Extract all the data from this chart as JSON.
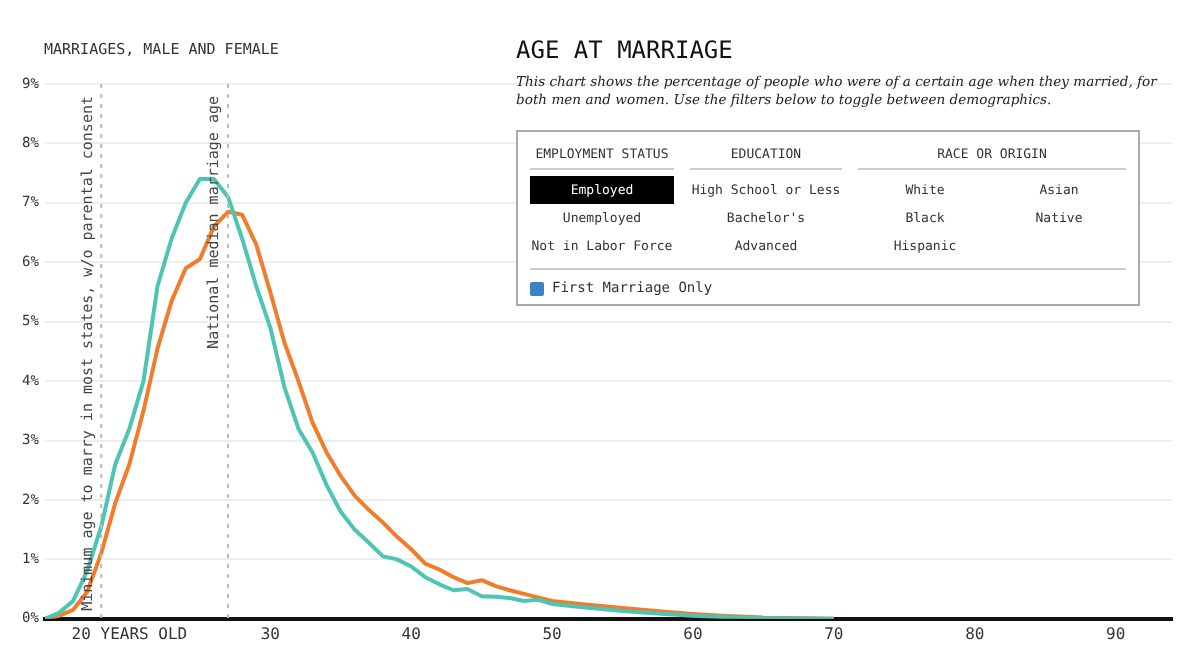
{
  "chart_data": {
    "type": "line",
    "title": "AGE AT MARRIAGE",
    "subtitle": "This chart shows the percentage of people who were of a certain age when they married, for both men and women. Use the filters below to toggle between demographics.",
    "ylabel": "MARRIAGES, MALE AND FEMALE",
    "annotations": [
      "EMPLOYMENT STATUS",
      "EDUCATION",
      "RACE OR ORIGIN",
      "Employed",
      "Unemployed",
      "Not in Labor Force",
      "High School or Less",
      "Bachelor's",
      "Advanced",
      "White",
      "Black",
      "Hispanic",
      "Asian",
      "Native",
      "First Marriage Only"
    ],
    "xlim": [
      14,
      94
    ],
    "xticks": [
      {
        "value": 20,
        "label": "20 YEARS OLD"
      },
      30,
      40,
      50,
      60,
      70,
      80,
      90
    ],
    "ylim": [
      0,
      9
    ],
    "yticks": [
      {
        "value": 0,
        "label": "0%"
      },
      {
        "value": 1,
        "label": "1%"
      },
      {
        "value": 2,
        "label": "2%"
      },
      {
        "value": 3,
        "label": "3%"
      },
      {
        "value": 4,
        "label": "4%"
      },
      {
        "value": 5,
        "label": "5%"
      },
      {
        "value": 6,
        "label": "6%"
      },
      {
        "value": 7,
        "label": "7%"
      },
      {
        "value": 8,
        "label": "8%"
      },
      {
        "value": 9,
        "label": "9%"
      }
    ],
    "grid": "y",
    "marker": "none",
    "line_style": "solid",
    "ref_lines": [
      {
        "axis": "x",
        "value": 18,
        "label": "Minimum age to marry in most states, w/o parental consent",
        "color": "#bbbbbb",
        "line_style": "dotted"
      },
      {
        "axis": "x",
        "value": 27,
        "label": "National median marriage age",
        "color": "#bbbbbb",
        "line_style": "dotted"
      }
    ],
    "series": [
      {
        "color": "#4dc4b4",
        "x": [
          14,
          15,
          16,
          17,
          18,
          19,
          20,
          21,
          22,
          23,
          24,
          25,
          26,
          27,
          28,
          29,
          30,
          31,
          32,
          33,
          34,
          35,
          36,
          37,
          38,
          39,
          40,
          41,
          42,
          43,
          44,
          45,
          46,
          47,
          48,
          49,
          50,
          52,
          55,
          58,
          60,
          63,
          65,
          70
        ],
        "values": [
          0,
          0.1,
          0.3,
          0.8,
          1.55,
          2.6,
          3.2,
          4.0,
          5.6,
          6.4,
          7.0,
          7.4,
          7.4,
          7.1,
          6.4,
          5.6,
          4.9,
          3.9,
          3.2,
          2.8,
          2.25,
          1.8,
          1.5,
          1.28,
          1.05,
          1.0,
          0.88,
          0.7,
          0.58,
          0.48,
          0.5,
          0.38,
          0.37,
          0.35,
          0.3,
          0.32,
          0.25,
          0.2,
          0.13,
          0.08,
          0.05,
          0.02,
          0.01,
          0
        ]
      },
      {
        "color": "#f07c2c",
        "x": [
          14,
          15,
          16,
          17,
          18,
          19,
          20,
          21,
          22,
          23,
          24,
          25,
          26,
          27,
          28,
          29,
          30,
          31,
          32,
          33,
          34,
          35,
          36,
          37,
          38,
          39,
          40,
          41,
          42,
          43,
          44,
          45,
          46,
          47,
          48,
          49,
          50,
          52,
          55,
          58,
          60,
          62,
          65,
          70
        ],
        "values": [
          0,
          0.05,
          0.15,
          0.45,
          1.1,
          1.95,
          2.6,
          3.5,
          4.55,
          5.35,
          5.9,
          6.05,
          6.6,
          6.85,
          6.8,
          6.3,
          5.5,
          4.65,
          4.0,
          3.3,
          2.8,
          2.4,
          2.07,
          1.83,
          1.62,
          1.38,
          1.17,
          0.93,
          0.83,
          0.7,
          0.6,
          0.65,
          0.55,
          0.48,
          0.42,
          0.36,
          0.3,
          0.25,
          0.18,
          0.12,
          0.08,
          0.05,
          0.02,
          0
        ]
      }
    ]
  }
}
